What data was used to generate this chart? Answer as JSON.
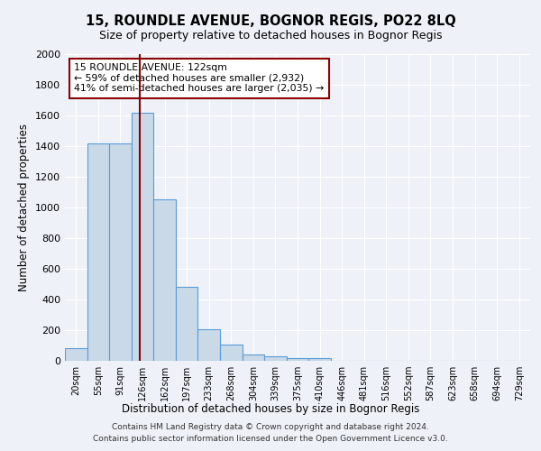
{
  "title": "15, ROUNDLE AVENUE, BOGNOR REGIS, PO22 8LQ",
  "subtitle": "Size of property relative to detached houses in Bognor Regis",
  "xlabel": "Distribution of detached houses by size in Bognor Regis",
  "ylabel": "Number of detached properties",
  "bin_labels": [
    "20sqm",
    "55sqm",
    "91sqm",
    "126sqm",
    "162sqm",
    "197sqm",
    "233sqm",
    "268sqm",
    "304sqm",
    "339sqm",
    "375sqm",
    "410sqm",
    "446sqm",
    "481sqm",
    "516sqm",
    "552sqm",
    "587sqm",
    "623sqm",
    "658sqm",
    "694sqm",
    "729sqm"
  ],
  "bar_values": [
    80,
    1415,
    1420,
    1620,
    1050,
    480,
    205,
    105,
    40,
    30,
    20,
    15,
    0,
    0,
    0,
    0,
    0,
    0,
    0,
    0,
    0
  ],
  "bar_color": "#c9d9e8",
  "bar_edge_color": "#5b9bd5",
  "vline_color": "#8b0000",
  "annotation_text": "15 ROUNDLE AVENUE: 122sqm\n← 59% of detached houses are smaller (2,932)\n41% of semi-detached houses are larger (2,035) →",
  "annotation_box_color": "white",
  "annotation_box_edge": "#8b0000",
  "ylim": [
    0,
    2000
  ],
  "yticks": [
    0,
    200,
    400,
    600,
    800,
    1000,
    1200,
    1400,
    1600,
    1800,
    2000
  ],
  "footer": "Contains HM Land Registry data © Crown copyright and database right 2024.\nContains public sector information licensed under the Open Government Licence v3.0.",
  "bg_color": "#eef2f8",
  "grid_color": "white"
}
